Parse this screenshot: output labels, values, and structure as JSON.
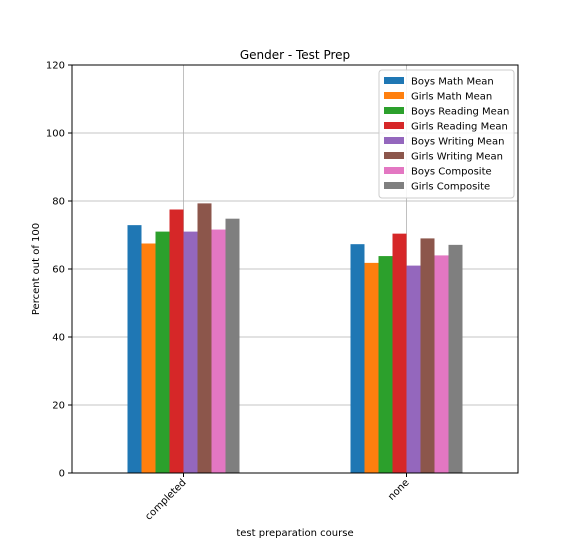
{
  "chart_data": {
    "type": "bar",
    "title": "Gender - Test Prep",
    "xlabel": "test preparation course",
    "ylabel": "Percent out of 100",
    "categories": [
      "completed",
      "none"
    ],
    "ylim": [
      0,
      120
    ],
    "yticks": [
      0,
      20,
      40,
      60,
      80,
      100,
      120
    ],
    "grid": true,
    "legend_position": "top-right",
    "series": [
      {
        "name": "Boys Math Mean",
        "color": "#1f77b4",
        "values": [
          72.9,
          67.3
        ]
      },
      {
        "name": "Girls Math Mean",
        "color": "#ff7f0e",
        "values": [
          67.5,
          61.8
        ]
      },
      {
        "name": "Boys Reading Mean",
        "color": "#2ca02c",
        "values": [
          71.0,
          63.8
        ]
      },
      {
        "name": "Girls Reading Mean",
        "color": "#d62728",
        "values": [
          77.5,
          70.4
        ]
      },
      {
        "name": "Boys Writing Mean",
        "color": "#9467bd",
        "values": [
          71.0,
          61.0
        ]
      },
      {
        "name": "Girls Writing Mean",
        "color": "#8c564b",
        "values": [
          79.3,
          69.0
        ]
      },
      {
        "name": "Boys Composite",
        "color": "#e377c2",
        "values": [
          71.6,
          64.0
        ]
      },
      {
        "name": "Girls Composite",
        "color": "#7f7f7f",
        "values": [
          74.8,
          67.1
        ]
      }
    ]
  }
}
